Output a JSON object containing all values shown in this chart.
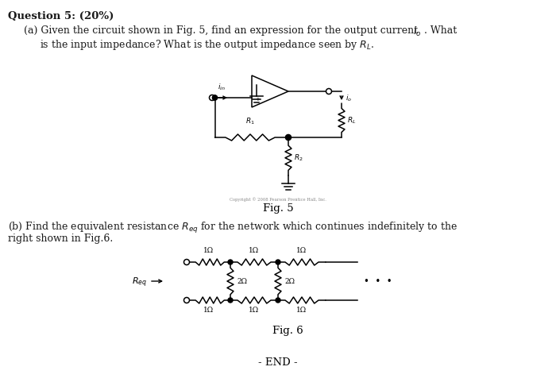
{
  "bg_color": "#ffffff",
  "text_color": "#1a1a1a",
  "title_bold": "Question 5: (20%)",
  "line1a": "(a) Given the circuit shown in Fig. 5, find an expression for the output current ",
  "line1b": "i",
  "line1c": "o",
  "line1d": ". What",
  "line2": "is the input impedance? What is the output impedance seen by R",
  "line2b": "L",
  "line2c": ".",
  "fig5_label": "Fig. 5",
  "part_b1a": "(b) Find the equivalent resistance R",
  "part_b1b": "eq",
  "part_b1c": " for the network which continues indefinitely to the",
  "part_b2": "right shown in Fig.6.",
  "fig6_label": "Fig. 6",
  "end_label": "- END -",
  "copyright_text": "Copyright © 2008 Pearson Prentice Hall, Inc."
}
